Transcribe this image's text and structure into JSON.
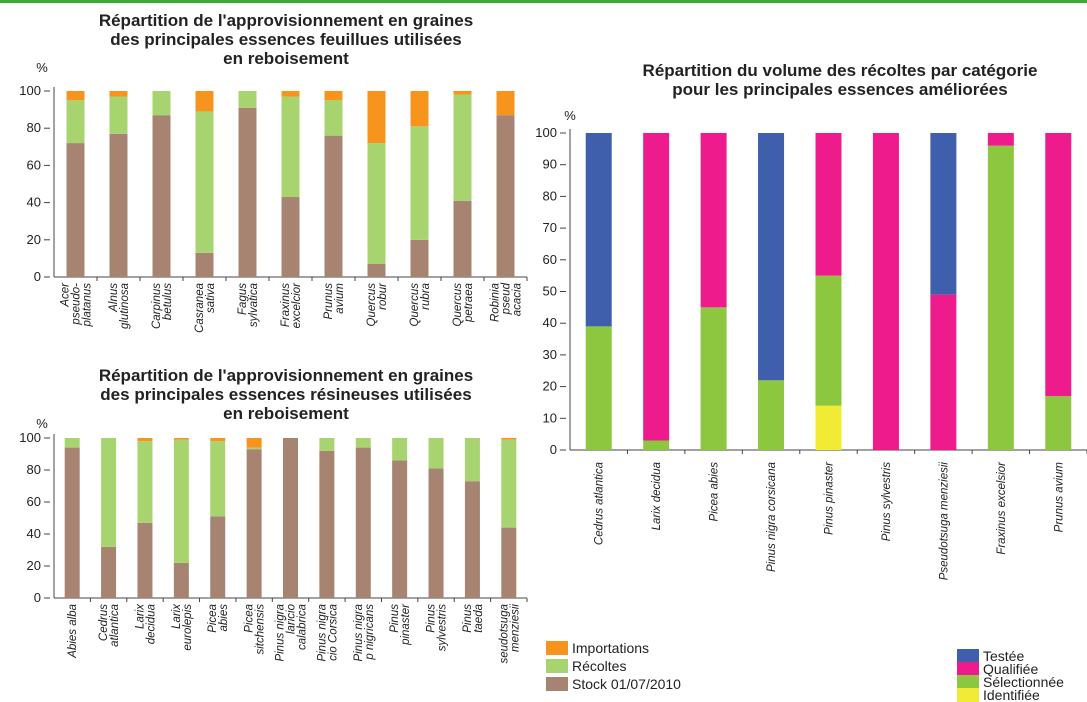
{
  "legend_left": [
    {
      "label": "Importations",
      "color": "#f7941d"
    },
    {
      "label": "Récoltes",
      "color": "#a8d46f"
    },
    {
      "label": "Stock 01/07/2010",
      "color": "#a68471"
    }
  ],
  "legend_right": [
    {
      "label": "Testée",
      "color": "#3f5fac"
    },
    {
      "label": "Qualifiée",
      "color": "#ed1b8b"
    },
    {
      "label": "Sélectionnée",
      "color": "#8dc63f"
    },
    {
      "label": "Identifiée",
      "color": "#f2eb35"
    }
  ],
  "chart_data": [
    {
      "type": "bar",
      "stacked": true,
      "title_lines": [
        "Répartition de l'approvisionnement en graines",
        "des principales essences feuillues utilisées",
        "en reboisement"
      ],
      "ylabel": "%",
      "ylim": [
        0,
        100
      ],
      "yticks": [
        0,
        20,
        40,
        60,
        80,
        100
      ],
      "categories": [
        [
          "Acer",
          "pseudo-",
          "platanus"
        ],
        [
          "Alnus",
          "glutinosa"
        ],
        [
          "Carpinus",
          "betulus"
        ],
        [
          "Casranea",
          "sativa"
        ],
        [
          "Fagus",
          "sylvatica"
        ],
        [
          "Fraxinus",
          "excelcior"
        ],
        [
          "Prunus",
          "avium"
        ],
        [
          "Quercus",
          "robur"
        ],
        [
          "Quercus",
          "rubra"
        ],
        [
          "Quercus",
          "petraea"
        ],
        [
          "Robinia",
          "pseud",
          "acacia"
        ]
      ],
      "series": [
        {
          "name": "Stock 01/07/2010",
          "values": [
            72,
            77,
            87,
            13,
            91,
            43,
            76,
            7,
            20,
            41,
            87
          ]
        },
        {
          "name": "Récoltes",
          "values": [
            23,
            20,
            13,
            76,
            9,
            54,
            19,
            65,
            61,
            57,
            0
          ]
        },
        {
          "name": "Importations",
          "values": [
            5,
            3,
            0,
            11,
            0,
            3,
            5,
            28,
            19,
            2,
            13
          ]
        }
      ]
    },
    {
      "type": "bar",
      "stacked": true,
      "title_lines": [
        "Répartition de l'approvisionnement en graines",
        "des principales essences résineuses utilisées",
        "en reboisement"
      ],
      "ylabel": "%",
      "ylim": [
        0,
        100
      ],
      "yticks": [
        0,
        20,
        40,
        60,
        80,
        100
      ],
      "categories": [
        [
          "Abies alba"
        ],
        [
          "Cedrus",
          "atlantica"
        ],
        [
          "Larix",
          "decidua"
        ],
        [
          "Larix",
          "eurolepis"
        ],
        [
          "Picea",
          "abies"
        ],
        [
          "Picea",
          "sitchensis"
        ],
        [
          "Pinus nigra",
          "laricio",
          "calabrica"
        ],
        [
          "Pinus nigra",
          "cio Corsica"
        ],
        [
          "Pinus nigra",
          "p nigricans"
        ],
        [
          "Pinus",
          "pinaster"
        ],
        [
          "Pinus",
          "sylvestris"
        ],
        [
          "Pinus",
          "taeda"
        ],
        [
          "seudotsuga",
          "menziesii"
        ]
      ],
      "series": [
        {
          "name": "Stock 01/07/2010",
          "values": [
            94,
            32,
            47,
            22,
            51,
            93,
            100,
            92,
            94,
            86,
            81,
            73,
            44
          ]
        },
        {
          "name": "Récoltes",
          "values": [
            6,
            68,
            51,
            77,
            47,
            1,
            0,
            8,
            6,
            14,
            19,
            27,
            55
          ]
        },
        {
          "name": "Importations",
          "values": [
            0,
            0,
            2,
            1,
            2,
            6,
            0,
            0,
            0,
            0,
            0,
            0,
            1
          ]
        }
      ]
    },
    {
      "type": "bar",
      "stacked": true,
      "title_lines": [
        "Répartition du volume des récoltes par catégorie",
        "pour les principales essences améliorées"
      ],
      "ylabel": "%",
      "ylim": [
        0,
        100
      ],
      "yticks": [
        0,
        10,
        20,
        30,
        40,
        50,
        60,
        70,
        80,
        90,
        100
      ],
      "categories": [
        "Cedrus atlantica",
        "Larix decidua",
        "Picea abies",
        "Pinus nigra corsicana",
        "Pinus pinaster",
        "Pinus sylvestris",
        "Pseudotsuga menziesii",
        "Fraxinus excelsior",
        "Prunus avium"
      ],
      "series": [
        {
          "name": "Identifiée",
          "values": [
            0,
            0,
            0,
            0,
            14,
            0,
            0,
            0,
            0
          ]
        },
        {
          "name": "Sélectionnée",
          "values": [
            39,
            3,
            45,
            22,
            41,
            0,
            0,
            96,
            17
          ]
        },
        {
          "name": "Qualifiée",
          "values": [
            0,
            97,
            55,
            0,
            45,
            100,
            49,
            4,
            83
          ]
        },
        {
          "name": "Testée",
          "values": [
            61,
            0,
            0,
            78,
            0,
            0,
            51,
            0,
            0
          ]
        }
      ]
    }
  ]
}
